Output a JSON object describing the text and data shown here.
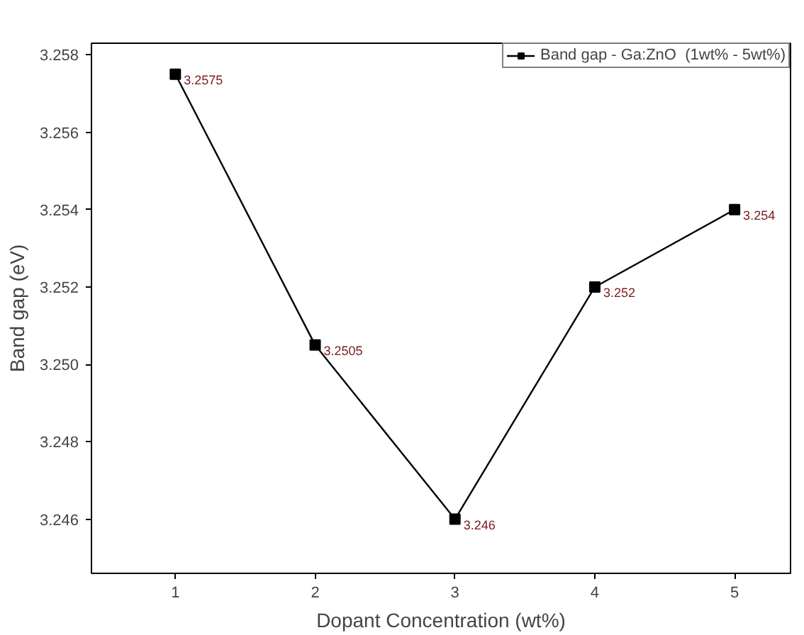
{
  "chart_data": {
    "type": "line",
    "xlabel": "Dopant Concentration (wt%)",
    "ylabel": "Band gap (eV)",
    "x": [
      1,
      2,
      3,
      4,
      5
    ],
    "series": [
      {
        "name": "Band gap - Ga:ZnO  (1wt% - 5wt%)",
        "color": "#000000",
        "values": [
          3.2575,
          3.2505,
          3.246,
          3.252,
          3.254
        ]
      }
    ],
    "xlim": [
      0.4,
      5.4
    ],
    "ylim": [
      3.2446,
      3.2583
    ],
    "xticks": [
      1,
      2,
      3,
      4,
      5
    ],
    "yticks": [
      {
        "value": 3.246,
        "label": "3.246"
      },
      {
        "value": 3.248,
        "label": "3.248"
      },
      {
        "value": 3.25,
        "label": "3.250"
      },
      {
        "value": 3.252,
        "label": "3.252"
      },
      {
        "value": 3.254,
        "label": "3.254"
      },
      {
        "value": 3.256,
        "label": "3.256"
      },
      {
        "value": 3.258,
        "label": "3.258"
      }
    ],
    "marker": "square",
    "line_style": "solid",
    "legend": "top right",
    "grid": false,
    "data_labels": true
  }
}
